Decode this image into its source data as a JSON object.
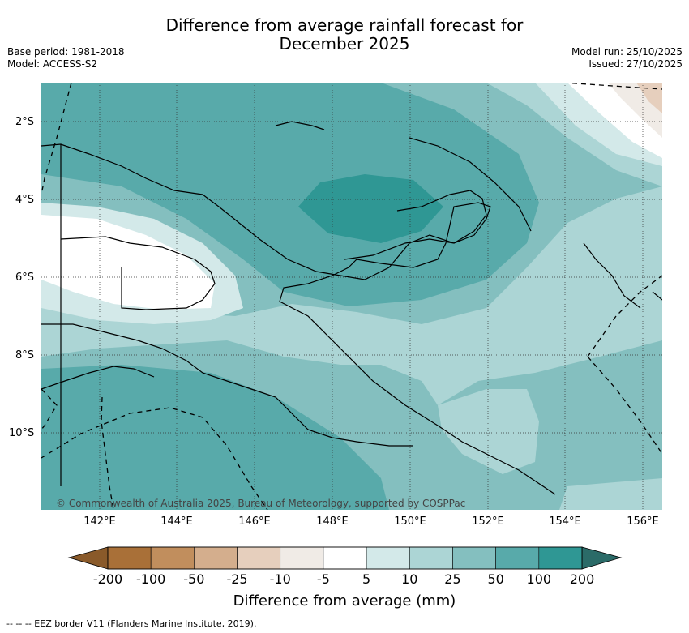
{
  "header": {
    "title_line1": "Difference from average rainfall forecast for",
    "title_line2": "December 2025",
    "base_period": "Base period: 1981-2018",
    "model": "Model: ACCESS-S2",
    "model_run": "Model run: 25/10/2025",
    "issued": "Issued: 27/10/2025"
  },
  "map": {
    "lat_labels": [
      "2°S",
      "4°S",
      "6°S",
      "8°S",
      "10°S"
    ],
    "lon_labels": [
      "142°E",
      "144°E",
      "146°E",
      "148°E",
      "150°E",
      "152°E",
      "154°E",
      "156°E"
    ],
    "copyright": "© Commonwealth of Australia 2025, Bureau of Meteorology, supported by COSPPac",
    "gridlines": true,
    "colors": {
      "c50_100": "#58aaaa",
      "c25_50": "#84bfbf",
      "c10_25": "#acd5d5",
      "c5_10": "#d3e9e9",
      "cneutral": "#ffffff",
      "cm10_5": "#f0ebe6",
      "c100_200": "#2f9794"
    }
  },
  "colorbar": {
    "ticks": [
      "-200",
      "-100",
      "-50",
      "-25",
      "-10",
      "-5",
      "5",
      "10",
      "25",
      "50",
      "100",
      "200"
    ],
    "colors": [
      "#a97038",
      "#c18e5d",
      "#d4ae8d",
      "#e6cfbd",
      "#f0ebe6",
      "#ffffff",
      "#d3e9e9",
      "#acd5d5",
      "#84bfbf",
      "#58aaaa",
      "#2f9794"
    ],
    "under_color": "#8a5a2a",
    "over_color": "#2b6b68",
    "label": "Difference from average (mm)"
  },
  "footer": {
    "legend": "--  --  -- EEZ border V11 (Flanders Marine Institute, 2019)."
  }
}
